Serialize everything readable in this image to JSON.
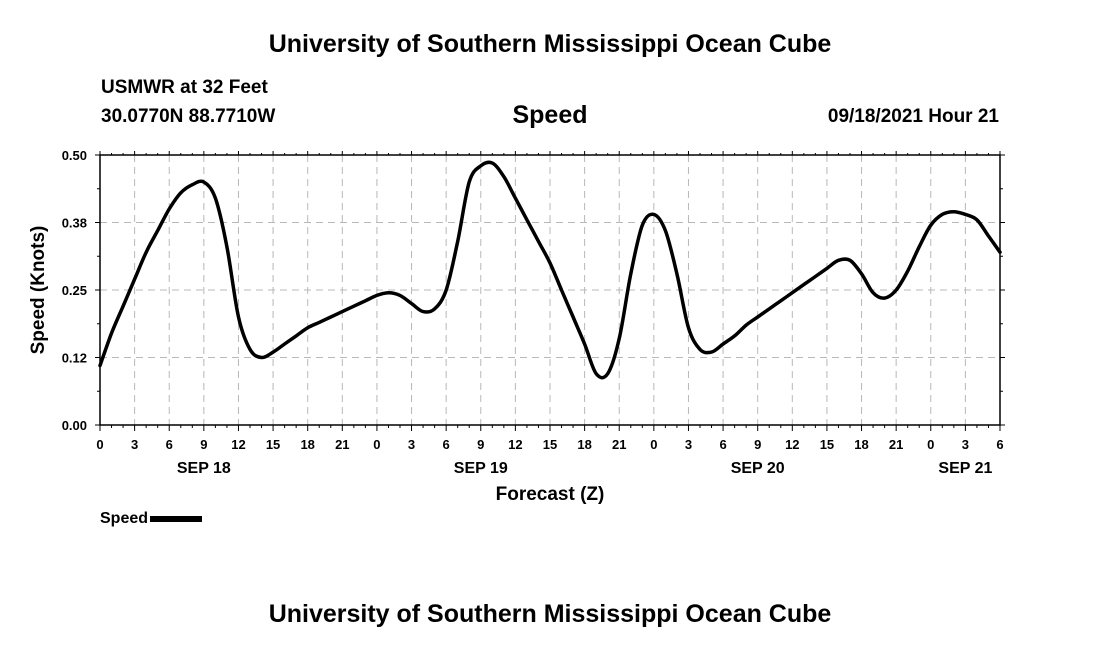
{
  "header": {
    "top_title": "University of Southern Mississippi Ocean Cube",
    "station": "USMWR at 32 Feet",
    "coords": "30.0770N  88.7710W",
    "timestamp": "09/18/2021 Hour 21",
    "bottom_title": "University of Southern Mississippi Ocean Cube"
  },
  "chart_data": {
    "type": "line",
    "title": "Speed",
    "xlabel": "Forecast (Z)",
    "ylabel": "Speed (Knots)",
    "x_unit": "hours from 09/18 00Z",
    "xlim": [
      0,
      78
    ],
    "ylim": [
      0,
      0.5
    ],
    "yticks": [
      "0.00",
      "0.12",
      "0.25",
      "0.38",
      "0.50"
    ],
    "xticks": [
      "0",
      "3",
      "6",
      "9",
      "12",
      "15",
      "18",
      "21",
      "0",
      "3",
      "6",
      "9",
      "12",
      "15",
      "18",
      "21",
      "0",
      "3",
      "6",
      "9",
      "12",
      "15",
      "18",
      "21",
      "0",
      "3",
      "6"
    ],
    "date_labels": [
      {
        "label": "SEP 18",
        "hour": 9
      },
      {
        "label": "SEP 19",
        "hour": 33
      },
      {
        "label": "SEP 20",
        "hour": 57
      },
      {
        "label": "SEP 21",
        "hour": 75
      }
    ],
    "grid": true,
    "legend": "bottom-left",
    "series": [
      {
        "name": "Speed",
        "color": "#000000",
        "x": [
          0,
          1,
          2,
          3,
          4,
          5,
          6,
          7,
          8,
          9,
          10,
          11,
          12,
          13,
          14,
          15,
          16,
          17,
          18,
          19,
          20,
          21,
          22,
          23,
          24,
          25,
          26,
          27,
          28,
          29,
          30,
          31,
          32,
          33,
          34,
          35,
          36,
          37,
          38,
          39,
          40,
          41,
          42,
          43,
          44,
          45,
          46,
          47,
          48,
          49,
          50,
          51,
          52,
          53,
          54,
          55,
          56,
          57,
          58,
          59,
          60,
          61,
          62,
          63,
          64,
          65,
          66,
          67,
          68,
          69,
          70,
          71,
          72,
          73,
          74,
          75,
          76,
          77,
          78
        ],
        "values": [
          0.11,
          0.17,
          0.22,
          0.27,
          0.32,
          0.36,
          0.4,
          0.43,
          0.445,
          0.45,
          0.42,
          0.33,
          0.2,
          0.14,
          0.125,
          0.135,
          0.15,
          0.165,
          0.18,
          0.19,
          0.2,
          0.21,
          0.22,
          0.23,
          0.24,
          0.245,
          0.24,
          0.225,
          0.21,
          0.215,
          0.25,
          0.34,
          0.45,
          0.48,
          0.485,
          0.46,
          0.42,
          0.38,
          0.34,
          0.3,
          0.25,
          0.2,
          0.15,
          0.095,
          0.095,
          0.16,
          0.28,
          0.37,
          0.39,
          0.36,
          0.28,
          0.18,
          0.14,
          0.135,
          0.15,
          0.165,
          0.185,
          0.2,
          0.215,
          0.23,
          0.245,
          0.26,
          0.275,
          0.29,
          0.305,
          0.305,
          0.28,
          0.245,
          0.235,
          0.25,
          0.285,
          0.33,
          0.37,
          0.39,
          0.395,
          0.39,
          0.38,
          0.35,
          0.32
        ]
      }
    ]
  },
  "legend_label": "Speed"
}
